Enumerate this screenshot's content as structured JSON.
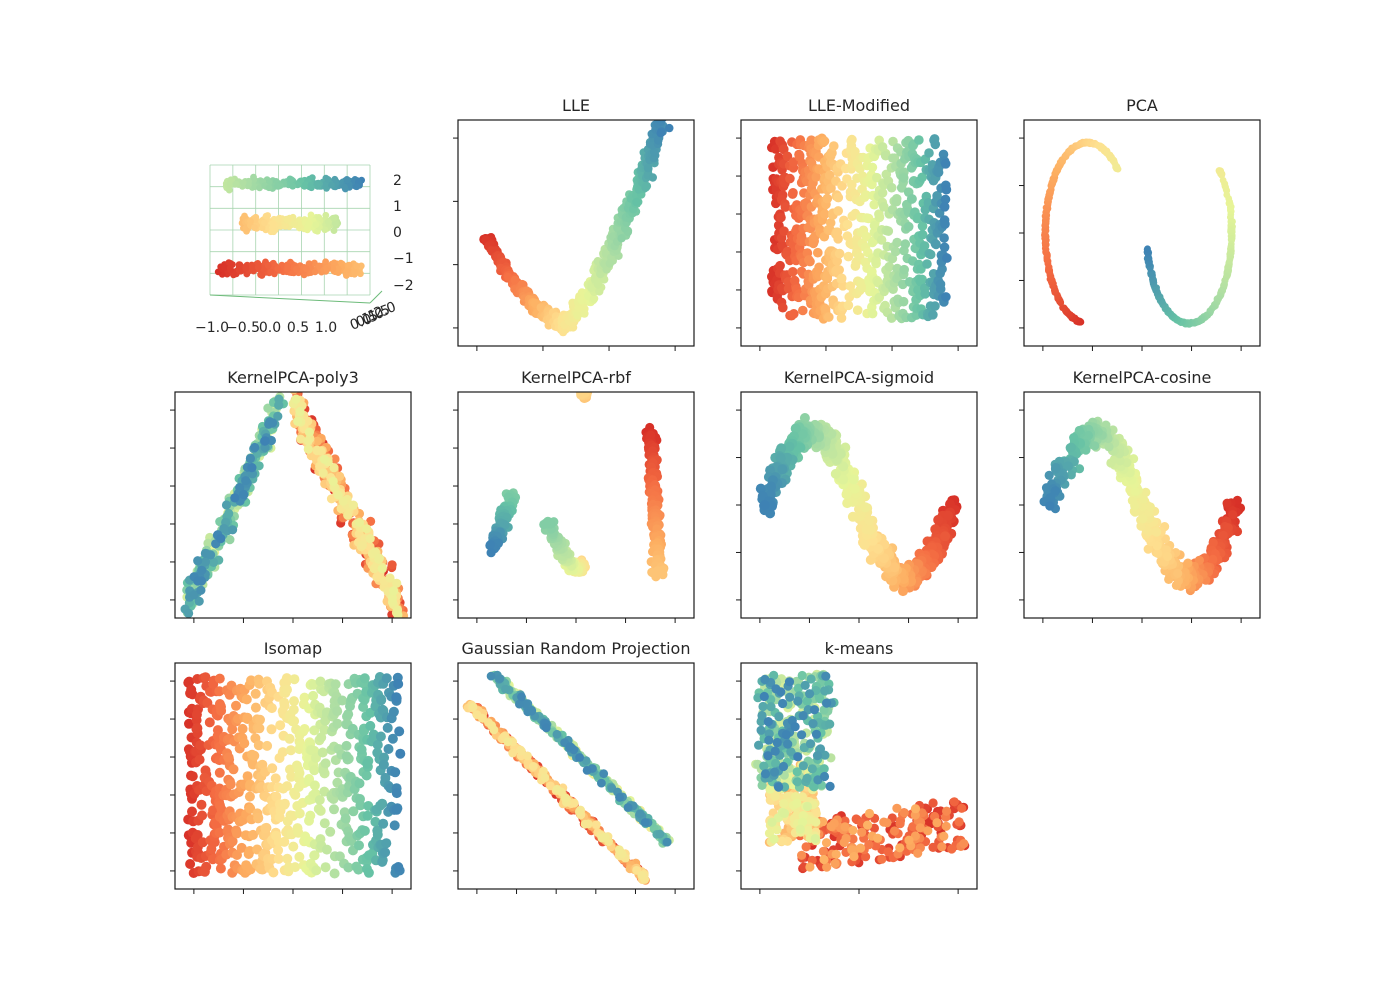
{
  "figure": {
    "colormap": [
      "#9e0142",
      "#d53e4f",
      "#f46d43",
      "#fdae61",
      "#fee08b",
      "#ffffbf",
      "#e6f598",
      "#abdda4",
      "#66c2a5",
      "#3288bd",
      "#5e4fa2"
    ],
    "point_color_range": [
      "#d73027",
      "#f46d43",
      "#fdae61",
      "#fee090",
      "#e6f598",
      "#abdda4",
      "#66c2a5",
      "#3e82b4"
    ]
  },
  "chart_data": [
    {
      "type": "scatter",
      "projection": "3d",
      "title": "",
      "x_ticklabels": [
        "−1.0",
        "−0.5",
        "0.0",
        "0.5",
        "1.0"
      ],
      "y_ticklabels": [
        "0.0",
        "0.5",
        "1.0",
        "1.5",
        "2.0"
      ],
      "z_ticklabels": [
        "2",
        "1",
        "0",
        "−1",
        "−2"
      ],
      "grid": true,
      "curve": "s-curve"
    },
    {
      "type": "scatter",
      "title": "LLE",
      "curve": "v-shape",
      "ticks_x": 4,
      "ticks_y": 4,
      "grid": false
    },
    {
      "type": "scatter",
      "title": "LLE-Modified",
      "curve": "rectangle",
      "ticks_x": 4,
      "ticks_y": 6,
      "grid": false
    },
    {
      "type": "scatter",
      "title": "PCA",
      "curve": "s-loops",
      "ticks_x": 5,
      "ticks_y": 5,
      "grid": false
    },
    {
      "type": "scatter",
      "title": "KernelPCA-poly3",
      "curve": "arch",
      "ticks_x": 5,
      "ticks_y": 6,
      "grid": false
    },
    {
      "type": "scatter",
      "title": "KernelPCA-rbf",
      "curve": "hook",
      "ticks_x": 5,
      "ticks_y": 6,
      "grid": false
    },
    {
      "type": "scatter",
      "title": "KernelPCA-sigmoid",
      "curve": "s-wave",
      "ticks_x": 5,
      "ticks_y": 5,
      "grid": false
    },
    {
      "type": "scatter",
      "title": "KernelPCA-cosine",
      "curve": "s-wave-thick",
      "ticks_x": 5,
      "ticks_y": 5,
      "grid": false
    },
    {
      "type": "scatter",
      "title": "Isomap",
      "curve": "square",
      "ticks_x": 5,
      "ticks_y": 6,
      "grid": false
    },
    {
      "type": "scatter",
      "title": "Gaussian Random Projection",
      "curve": "diagonal-bands",
      "ticks_x": 6,
      "ticks_y": 6,
      "grid": false
    },
    {
      "type": "scatter",
      "title": "k-means",
      "curve": "l-shape",
      "ticks_x": 3,
      "ticks_y": 6,
      "grid": false
    }
  ]
}
